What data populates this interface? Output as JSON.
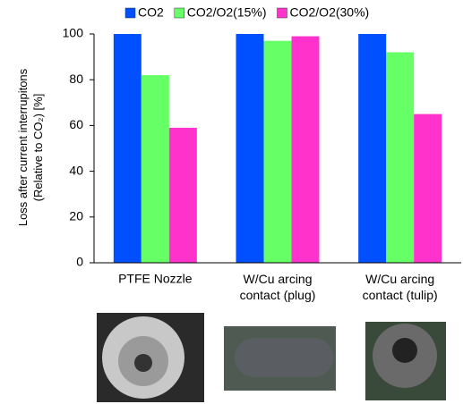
{
  "chart_data": {
    "type": "bar",
    "y_label": "Loss after current interrupitons\n(Relative to CO₂) [%]",
    "categories": [
      "PTFE Nozzle",
      "W/Cu arcing\ncontact (plug)",
      "W/Cu arcing\ncontact (tulip)"
    ],
    "series": [
      {
        "name": "CO2",
        "color": "#0050ff",
        "values": [
          100,
          100,
          100
        ]
      },
      {
        "name": "CO2/O2(15%)",
        "color": "#66ff66",
        "values": [
          82,
          97,
          92
        ]
      },
      {
        "name": "CO2/O2(30%)",
        "color": "#ff33cc",
        "values": [
          59,
          99,
          65
        ]
      }
    ],
    "ylim": [
      0,
      100
    ],
    "yticks": [
      0,
      20,
      40,
      60,
      80,
      100
    ],
    "grid": false,
    "legend": "top"
  }
}
